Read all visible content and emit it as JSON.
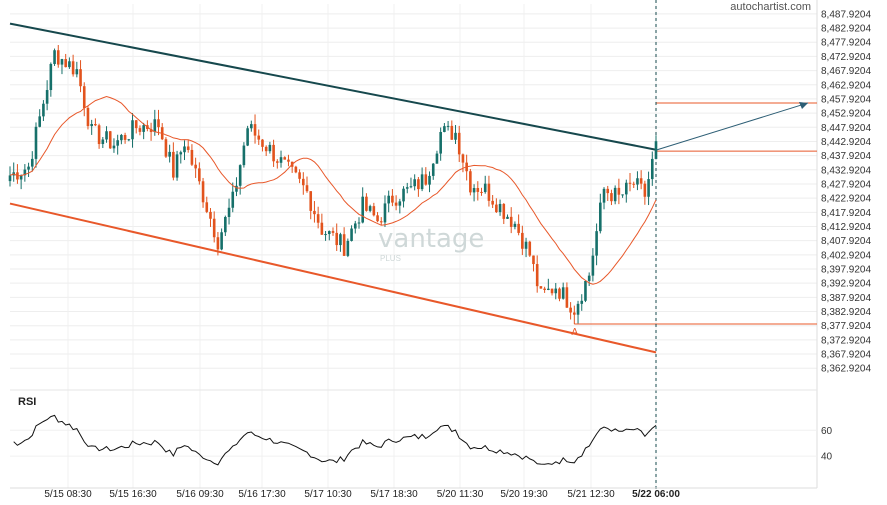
{
  "brand": "autochartist.com",
  "watermark": {
    "name": "vantage",
    "sub": "PLUS"
  },
  "rsi": {
    "label": "RSI",
    "ticks": [
      "60",
      "40"
    ]
  },
  "chart_data": {
    "type": "candlestick",
    "x_labels": [
      "5/15 08:30",
      "5/15 16:30",
      "5/16 09:30",
      "5/16 17:30",
      "5/17 10:30",
      "5/17 18:30",
      "5/20 11:30",
      "5/20 19:30",
      "5/21 12:30",
      "5/22 06:00"
    ],
    "highlight_x_label": "5/22 06:00",
    "y_labels": [
      "8,487.9204",
      "8,482.9204",
      "8,477.9204",
      "8,472.9204",
      "8,467.9204",
      "8,462.9204",
      "8,457.9204",
      "8,452.9204",
      "8,447.9204",
      "8,442.9204",
      "8,437.9204",
      "8,432.9204",
      "8,427.9204",
      "8,422.9204",
      "8,417.9204",
      "8,412.9204",
      "8,407.9204",
      "8,402.9204",
      "8,397.9204",
      "8,392.9204",
      "8,387.9204",
      "8,382.9204",
      "8,377.9204",
      "8,372.9204",
      "8,367.9204",
      "8,362.9204"
    ],
    "ylim": [
      8357,
      8490
    ],
    "price_keypoints": [
      [
        0,
        8431
      ],
      [
        5,
        8434
      ],
      [
        12,
        8474
      ],
      [
        18,
        8468
      ],
      [
        22,
        8446
      ],
      [
        28,
        8442
      ],
      [
        34,
        8448
      ],
      [
        40,
        8449
      ],
      [
        44,
        8432
      ],
      [
        47,
        8443
      ],
      [
        52,
        8424
      ],
      [
        56,
        8408
      ],
      [
        60,
        8422
      ],
      [
        64,
        8448
      ],
      [
        70,
        8440
      ],
      [
        74,
        8434
      ],
      [
        80,
        8425
      ],
      [
        84,
        8412
      ],
      [
        90,
        8406
      ],
      [
        95,
        8420
      ],
      [
        99,
        8415
      ],
      [
        103,
        8423
      ],
      [
        108,
        8426
      ],
      [
        112,
        8430
      ],
      [
        116,
        8446
      ],
      [
        120,
        8446
      ],
      [
        124,
        8428
      ],
      [
        128,
        8426
      ],
      [
        132,
        8420
      ],
      [
        136,
        8414
      ],
      [
        140,
        8403
      ],
      [
        143,
        8388
      ],
      [
        147,
        8392
      ],
      [
        152,
        8384
      ],
      [
        156,
        8396
      ],
      [
        160,
        8426
      ],
      [
        164,
        8423
      ],
      [
        168,
        8428
      ],
      [
        171,
        8424
      ],
      [
        174,
        8441
      ]
    ],
    "candle_count": 175,
    "resistance_line": {
      "start": [
        0,
        8484.5
      ],
      "end": [
        174,
        8440
      ]
    },
    "support_line": {
      "start": [
        0,
        8421
      ],
      "end": [
        174,
        8368.5
      ]
    },
    "pattern_point": {
      "label": "A",
      "value": 8378.5
    },
    "target_level": 8456.5,
    "breakout_level": 8439.5,
    "support_level": 8378.5,
    "colors": {
      "up": "#16706a",
      "down": "#e2531d",
      "resistance": "#16484d",
      "support": "#e8582a",
      "ma": "#e8582a",
      "rsi": "#111111"
    }
  }
}
